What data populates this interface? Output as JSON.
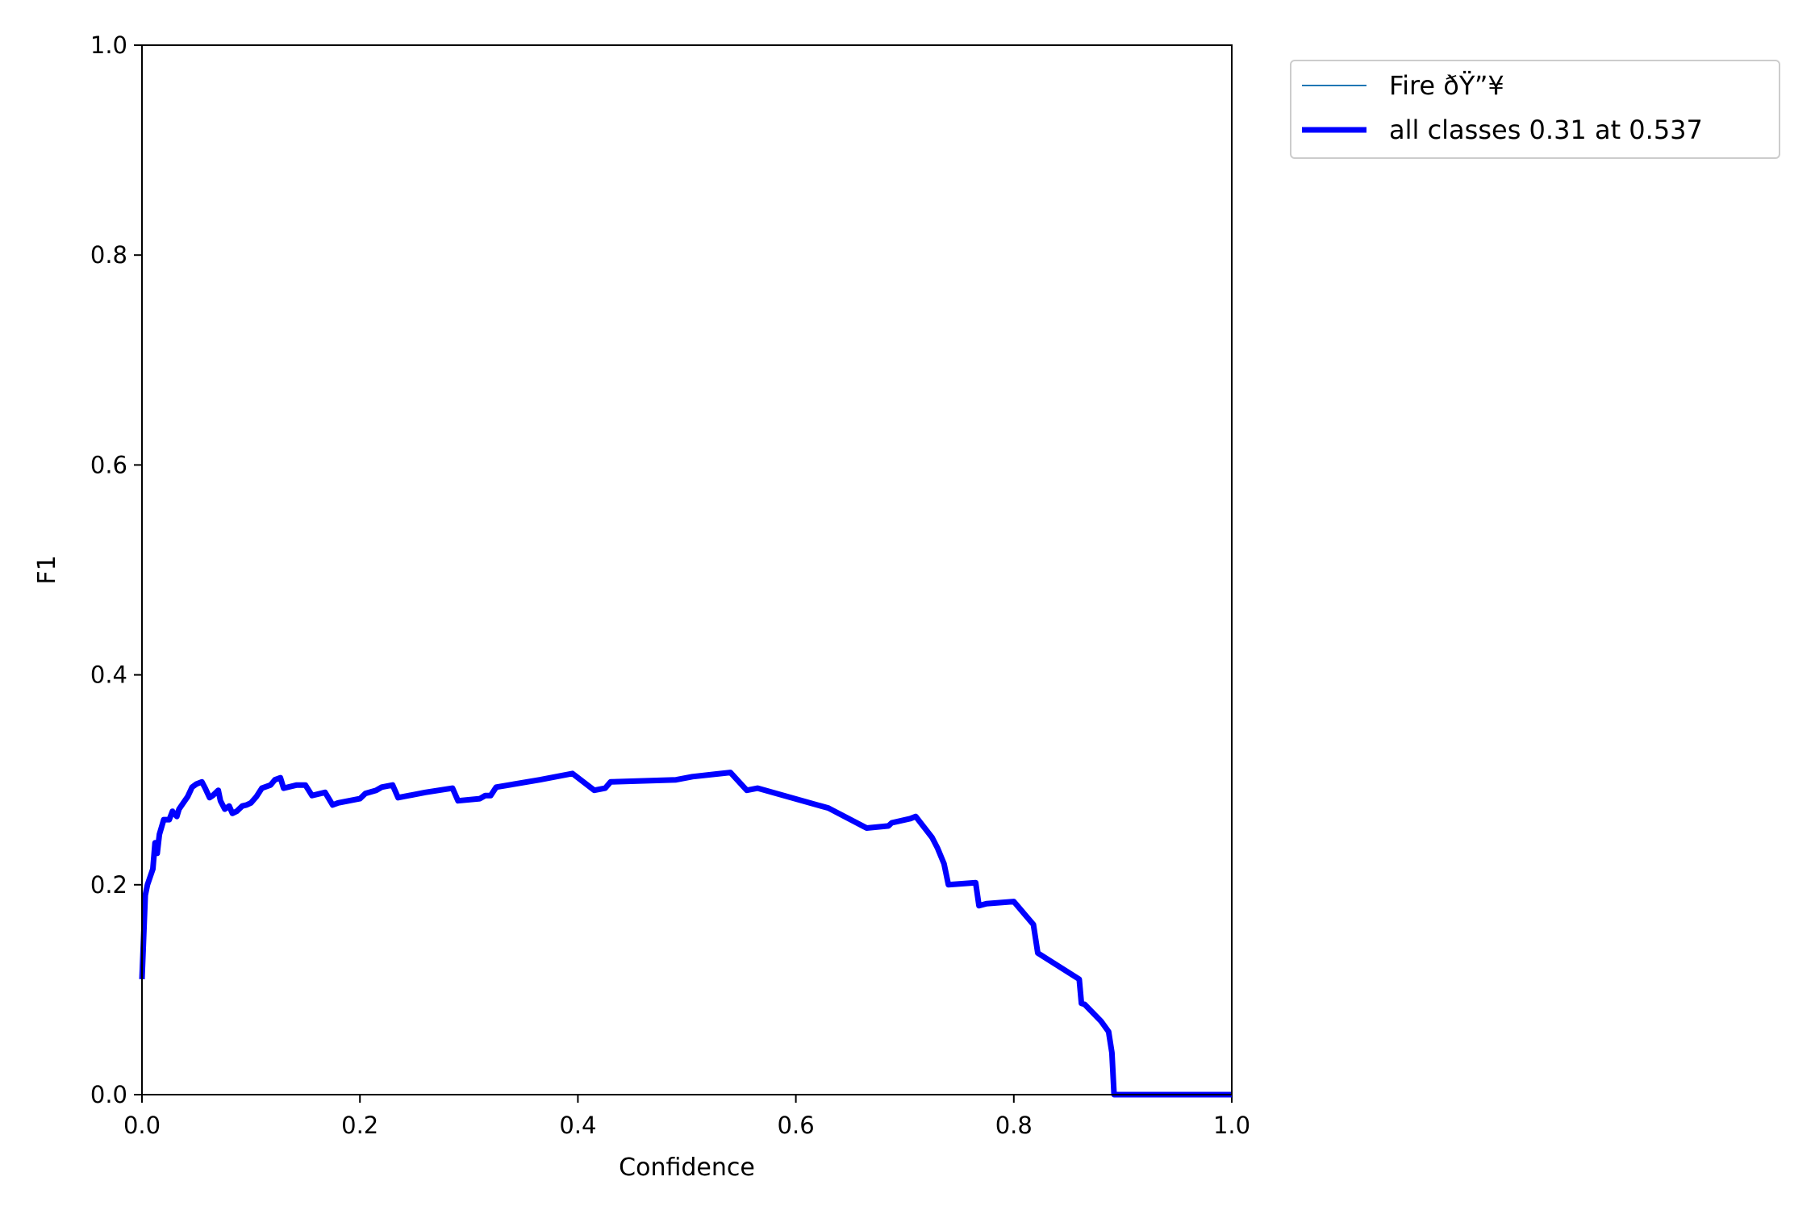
{
  "chart_data": {
    "type": "line",
    "xlabel": "Confidence",
    "ylabel": "F1",
    "xlim": [
      0,
      1
    ],
    "ylim": [
      0,
      1
    ],
    "xticks": [
      "0.0",
      "0.2",
      "0.4",
      "0.6",
      "0.8",
      "1.0"
    ],
    "yticks": [
      "0.0",
      "0.2",
      "0.4",
      "0.6",
      "0.8",
      "1.0"
    ],
    "grid": false,
    "legend_position": "outside-top-right",
    "series": [
      {
        "name": "Fire ðŸ”¥",
        "color": "#1f77b4",
        "style": "thin",
        "x": [],
        "y": []
      },
      {
        "name": "all classes 0.31 at 0.537",
        "color": "#0000ff",
        "style": "thick",
        "x": [
          0.0,
          0.003,
          0.005,
          0.01,
          0.012,
          0.014,
          0.016,
          0.02,
          0.025,
          0.028,
          0.032,
          0.034,
          0.038,
          0.042,
          0.046,
          0.05,
          0.055,
          0.058,
          0.062,
          0.065,
          0.07,
          0.072,
          0.076,
          0.08,
          0.083,
          0.087,
          0.092,
          0.096,
          0.1,
          0.105,
          0.11,
          0.118,
          0.122,
          0.127,
          0.13,
          0.142,
          0.15,
          0.156,
          0.168,
          0.175,
          0.18,
          0.19,
          0.2,
          0.205,
          0.215,
          0.22,
          0.23,
          0.235,
          0.26,
          0.285,
          0.29,
          0.31,
          0.315,
          0.32,
          0.325,
          0.365,
          0.395,
          0.415,
          0.425,
          0.43,
          0.49,
          0.505,
          0.54,
          0.555,
          0.565,
          0.63,
          0.665,
          0.685,
          0.688,
          0.705,
          0.71,
          0.725,
          0.73,
          0.736,
          0.74,
          0.765,
          0.768,
          0.775,
          0.8,
          0.818,
          0.822,
          0.86,
          0.862,
          0.865,
          0.88,
          0.887,
          0.89,
          0.892,
          1.0
        ],
        "y": [
          0.11,
          0.19,
          0.2,
          0.215,
          0.24,
          0.23,
          0.248,
          0.262,
          0.262,
          0.27,
          0.265,
          0.272,
          0.278,
          0.284,
          0.293,
          0.296,
          0.298,
          0.292,
          0.283,
          0.285,
          0.29,
          0.28,
          0.272,
          0.275,
          0.268,
          0.27,
          0.275,
          0.276,
          0.278,
          0.284,
          0.292,
          0.295,
          0.3,
          0.302,
          0.292,
          0.295,
          0.295,
          0.285,
          0.288,
          0.276,
          0.278,
          0.28,
          0.282,
          0.287,
          0.29,
          0.293,
          0.295,
          0.283,
          0.288,
          0.292,
          0.28,
          0.282,
          0.285,
          0.285,
          0.293,
          0.3,
          0.306,
          0.29,
          0.292,
          0.298,
          0.3,
          0.303,
          0.307,
          0.29,
          0.292,
          0.273,
          0.254,
          0.256,
          0.259,
          0.263,
          0.265,
          0.245,
          0.235,
          0.22,
          0.2,
          0.202,
          0.18,
          0.182,
          0.184,
          0.162,
          0.135,
          0.11,
          0.087,
          0.086,
          0.07,
          0.06,
          0.04,
          0.0,
          0.0
        ]
      }
    ]
  }
}
